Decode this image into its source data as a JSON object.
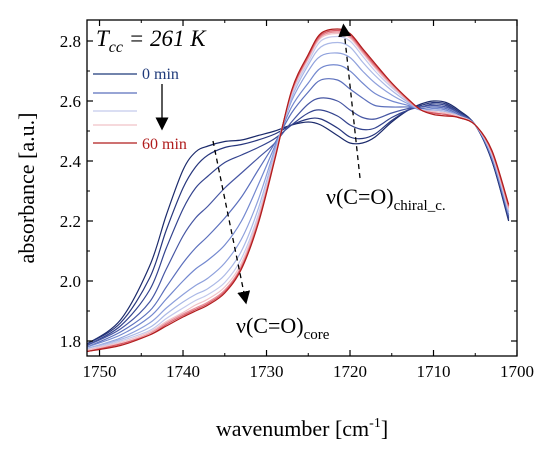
{
  "chart_data": {
    "type": "line",
    "title_main": "T",
    "title_sub": "cc",
    "title_rest": " = 261 K",
    "xlabel_main": "wavenumber [cm",
    "xlabel_sup": "-1",
    "xlabel_end": "]",
    "ylabel": "absorbance [a.u.]",
    "xlim": [
      1751.5,
      1700
    ],
    "ylim": [
      1.75,
      2.87
    ],
    "x_ticks": [
      1750,
      1740,
      1730,
      1720,
      1710,
      1700
    ],
    "x_tick_labels": [
      "1750",
      "1740",
      "1730",
      "1720",
      "1710",
      "1700"
    ],
    "y_ticks": [
      1.8,
      2.0,
      2.2,
      2.4,
      2.6,
      2.8
    ],
    "y_tick_labels": [
      "1.8",
      "2.0",
      "2.2",
      "2.4",
      "2.6",
      "2.8"
    ],
    "legend": {
      "placement": "top-left",
      "start_label": "0 min",
      "end_label": "60 min",
      "start_color": "#1f3a7a",
      "end_color": "#b01c1c"
    },
    "annotations": [
      {
        "main": "ν(C=O)",
        "sub": "core"
      },
      {
        "main": "ν(C=O)",
        "sub": "chiral_c."
      }
    ],
    "x": [
      1751.5,
      1747.5,
      1744,
      1742,
      1740,
      1738.5,
      1737,
      1735,
      1733,
      1731,
      1729,
      1727,
      1725,
      1723.5,
      1721.5,
      1720,
      1718.5,
      1717,
      1715,
      1713,
      1711.5,
      1710,
      1708.5,
      1707,
      1705,
      1703,
      1701
    ],
    "series": [
      {
        "color": "#1b2a6b",
        "values": [
          1.79,
          1.87,
          2.05,
          2.22,
          2.37,
          2.43,
          2.45,
          2.465,
          2.47,
          2.485,
          2.5,
          2.52,
          2.53,
          2.52,
          2.485,
          2.46,
          2.46,
          2.48,
          2.53,
          2.57,
          2.59,
          2.6,
          2.595,
          2.57,
          2.52,
          2.4,
          2.2
        ]
      },
      {
        "color": "#27367d",
        "values": [
          1.79,
          1.86,
          2.01,
          2.17,
          2.31,
          2.38,
          2.42,
          2.445,
          2.455,
          2.47,
          2.49,
          2.52,
          2.54,
          2.54,
          2.51,
          2.48,
          2.475,
          2.49,
          2.535,
          2.57,
          2.585,
          2.595,
          2.59,
          2.565,
          2.52,
          2.4,
          2.205
        ]
      },
      {
        "color": "#33438e",
        "values": [
          1.785,
          1.85,
          1.97,
          2.11,
          2.24,
          2.31,
          2.35,
          2.395,
          2.42,
          2.445,
          2.475,
          2.52,
          2.56,
          2.57,
          2.55,
          2.52,
          2.505,
          2.51,
          2.545,
          2.57,
          2.58,
          2.59,
          2.585,
          2.56,
          2.52,
          2.41,
          2.21
        ]
      },
      {
        "color": "#4656a3",
        "values": [
          1.785,
          1.84,
          1.93,
          2.04,
          2.15,
          2.21,
          2.25,
          2.31,
          2.36,
          2.41,
          2.46,
          2.53,
          2.59,
          2.61,
          2.6,
          2.57,
          2.545,
          2.54,
          2.56,
          2.575,
          2.58,
          2.585,
          2.58,
          2.56,
          2.52,
          2.41,
          2.215
        ]
      },
      {
        "color": "#5b6fbc",
        "values": [
          1.78,
          1.83,
          1.9,
          1.98,
          2.06,
          2.11,
          2.15,
          2.21,
          2.28,
          2.37,
          2.46,
          2.56,
          2.63,
          2.67,
          2.67,
          2.64,
          2.61,
          2.585,
          2.58,
          2.58,
          2.575,
          2.58,
          2.575,
          2.555,
          2.52,
          2.41,
          2.22
        ]
      },
      {
        "color": "#7388cf",
        "values": [
          1.78,
          1.82,
          1.88,
          1.94,
          2.0,
          2.04,
          2.07,
          2.12,
          2.2,
          2.32,
          2.45,
          2.58,
          2.66,
          2.71,
          2.72,
          2.7,
          2.66,
          2.625,
          2.6,
          2.585,
          2.57,
          2.575,
          2.57,
          2.55,
          2.52,
          2.41,
          2.22
        ]
      },
      {
        "color": "#8ea0dc",
        "values": [
          1.775,
          1.81,
          1.86,
          1.91,
          1.955,
          1.985,
          2.01,
          2.06,
          2.14,
          2.27,
          2.44,
          2.6,
          2.7,
          2.75,
          2.76,
          2.745,
          2.7,
          2.66,
          2.62,
          2.59,
          2.57,
          2.57,
          2.565,
          2.55,
          2.52,
          2.42,
          2.23
        ]
      },
      {
        "color": "#aab8e6",
        "values": [
          1.775,
          1.805,
          1.845,
          1.89,
          1.93,
          1.955,
          1.975,
          2.02,
          2.1,
          2.24,
          2.43,
          2.61,
          2.72,
          2.78,
          2.795,
          2.78,
          2.73,
          2.685,
          2.635,
          2.595,
          2.57,
          2.57,
          2.565,
          2.55,
          2.52,
          2.42,
          2.23
        ]
      },
      {
        "color": "#c4c9ec",
        "values": [
          1.77,
          1.8,
          1.835,
          1.875,
          1.91,
          1.935,
          1.955,
          1.995,
          2.075,
          2.22,
          2.42,
          2.62,
          2.73,
          2.8,
          2.815,
          2.8,
          2.75,
          2.7,
          2.645,
          2.6,
          2.57,
          2.565,
          2.56,
          2.55,
          2.52,
          2.42,
          2.235
        ]
      },
      {
        "color": "#f0c2c8",
        "values": [
          1.77,
          1.795,
          1.83,
          1.865,
          1.895,
          1.92,
          1.94,
          1.98,
          2.06,
          2.21,
          2.415,
          2.625,
          2.74,
          2.81,
          2.825,
          2.81,
          2.76,
          2.71,
          2.65,
          2.6,
          2.57,
          2.565,
          2.56,
          2.55,
          2.52,
          2.425,
          2.24
        ]
      },
      {
        "color": "#e88f98",
        "values": [
          1.765,
          1.79,
          1.825,
          1.86,
          1.89,
          1.91,
          1.93,
          1.97,
          2.05,
          2.2,
          2.41,
          2.63,
          2.745,
          2.815,
          2.83,
          2.815,
          2.765,
          2.715,
          2.655,
          2.6,
          2.57,
          2.56,
          2.555,
          2.545,
          2.52,
          2.43,
          2.245
        ]
      },
      {
        "color": "#d85a66",
        "values": [
          1.765,
          1.79,
          1.82,
          1.855,
          1.885,
          1.905,
          1.925,
          1.965,
          2.045,
          2.195,
          2.41,
          2.63,
          2.75,
          2.82,
          2.835,
          2.82,
          2.77,
          2.72,
          2.66,
          2.605,
          2.57,
          2.56,
          2.555,
          2.545,
          2.52,
          2.43,
          2.25
        ]
      },
      {
        "color": "#b01c1c",
        "values": [
          1.765,
          1.785,
          1.82,
          1.85,
          1.88,
          1.9,
          1.92,
          1.96,
          2.04,
          2.19,
          2.405,
          2.635,
          2.755,
          2.825,
          2.84,
          2.825,
          2.775,
          2.725,
          2.66,
          2.605,
          2.57,
          2.555,
          2.55,
          2.545,
          2.52,
          2.435,
          2.255
        ]
      }
    ]
  }
}
